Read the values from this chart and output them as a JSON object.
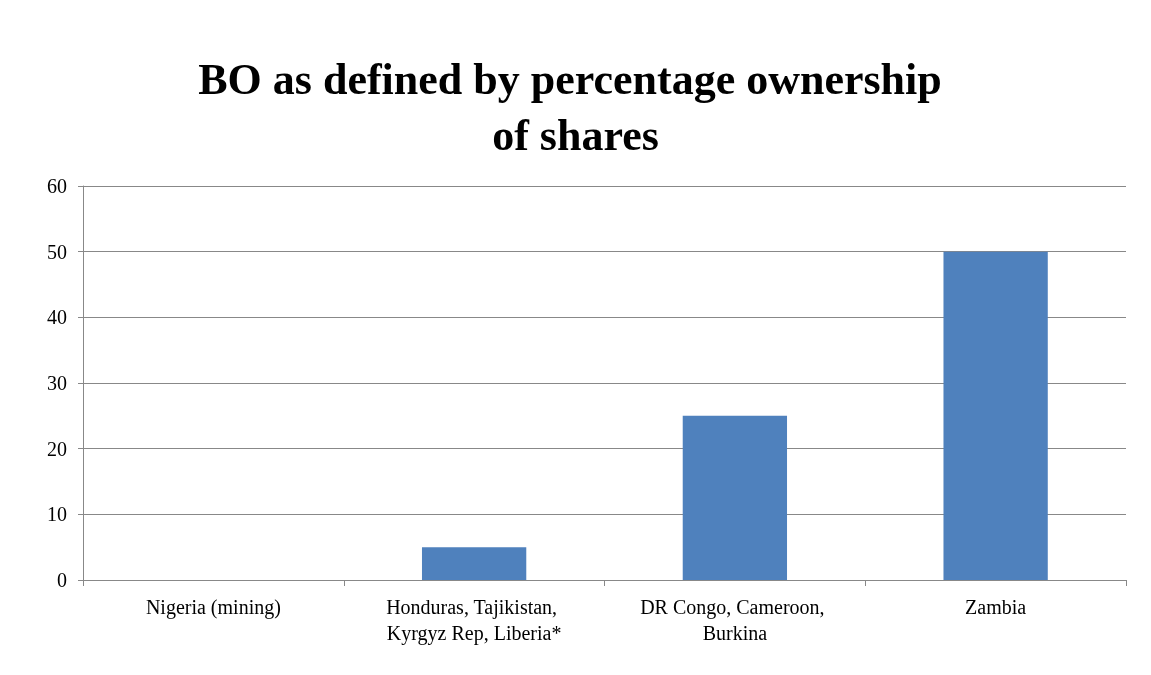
{
  "chart_data": {
    "type": "bar",
    "title": "BO as defined by percentage ownership of shares",
    "categories": [
      "Nigeria (mining)",
      "Honduras, Tajikistan, Kyrgyz Rep, Liberia*",
      "DR Congo, Cameroon, Burkina",
      "Zambia"
    ],
    "values": [
      0,
      5,
      25,
      50
    ],
    "color": "#4f81bd",
    "ylim": [
      0,
      60
    ],
    "yticks": [
      0,
      10,
      20,
      30,
      40,
      50,
      60
    ],
    "grid": "y"
  }
}
